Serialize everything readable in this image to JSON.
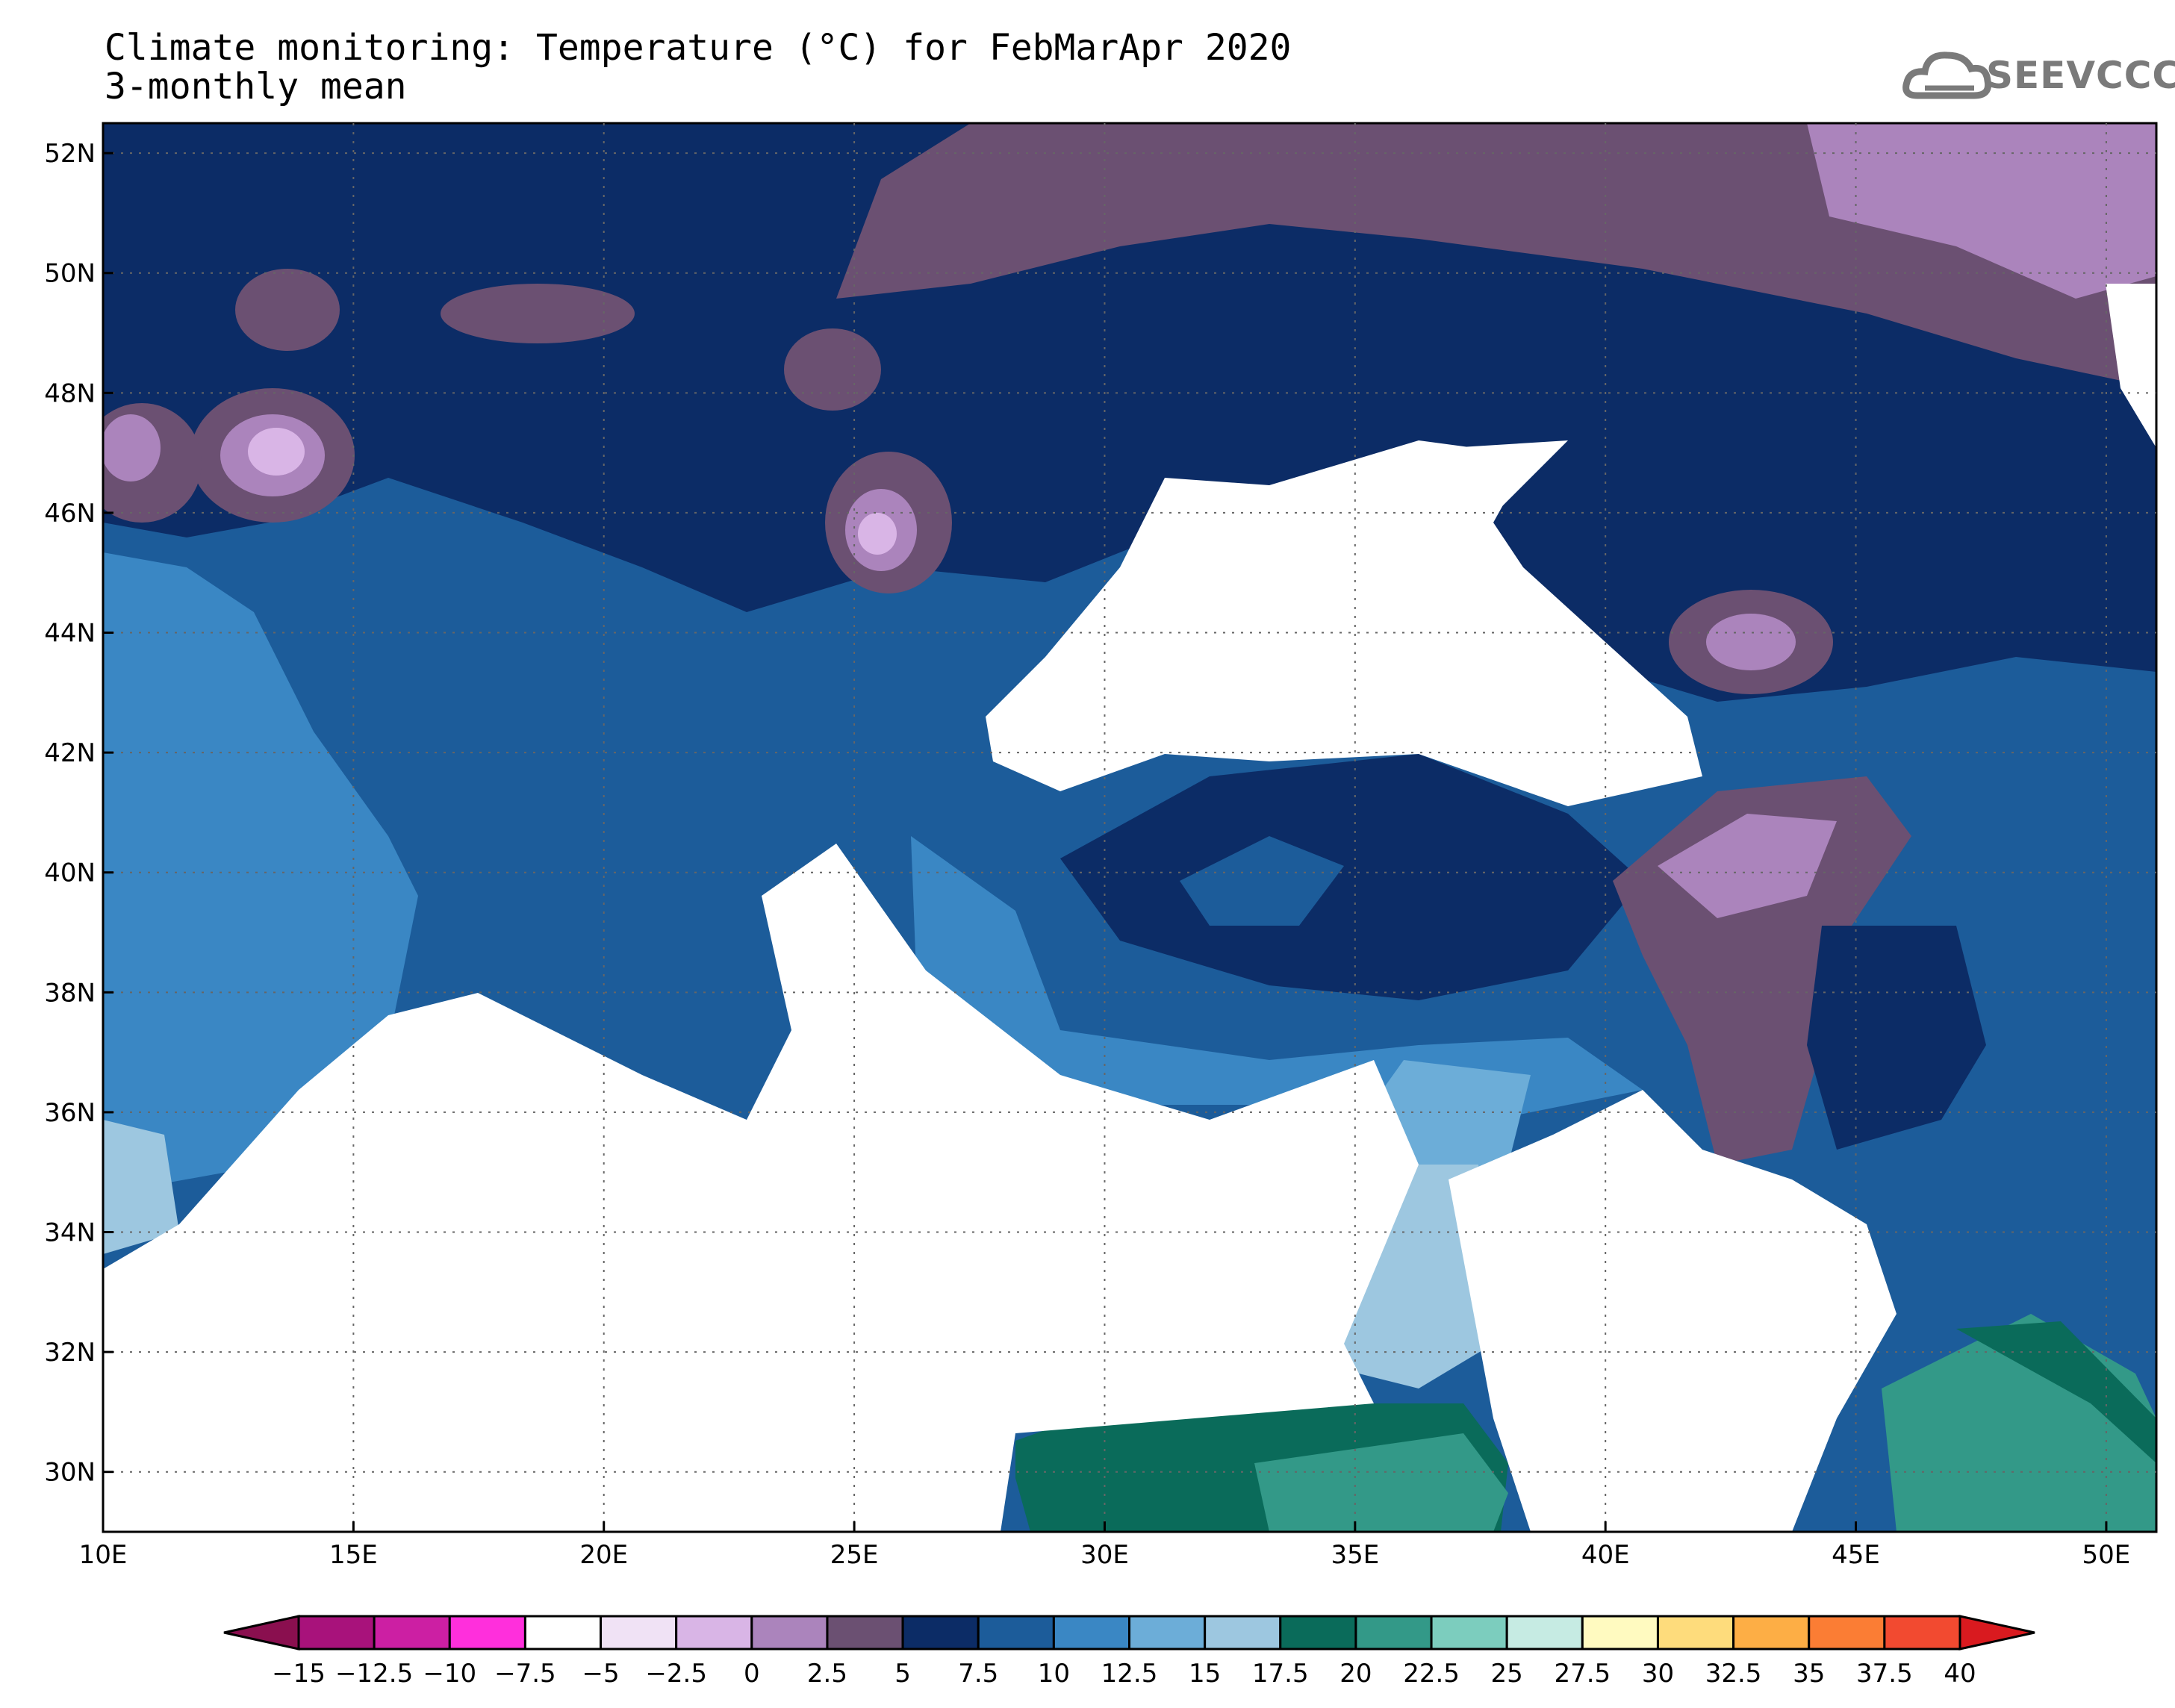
{
  "title": {
    "line1": "Climate monitoring: Temperature (°C) for FebMarApr 2020",
    "line2": "3-monthly mean"
  },
  "logo": {
    "text": "SEEVCCC",
    "icon": "cloud-icon"
  },
  "map": {
    "lon_range": [
      10,
      51
    ],
    "lat_range": [
      29,
      52.5
    ],
    "lon_ticks": [
      "10E",
      "15E",
      "20E",
      "25E",
      "30E",
      "35E",
      "40E",
      "45E",
      "50E"
    ],
    "lat_ticks": [
      "30N",
      "32N",
      "34N",
      "36N",
      "38N",
      "40N",
      "42N",
      "44N",
      "46N",
      "48N",
      "50N",
      "52N"
    ],
    "grid": true
  },
  "colorbar": {
    "labels": [
      "-15",
      "-12.5",
      "-10",
      "-7.5",
      "-5",
      "-2.5",
      "0",
      "2.5",
      "5",
      "7.5",
      "10",
      "12.5",
      "15",
      "17.5",
      "20",
      "22.5",
      "25",
      "27.5",
      "30",
      "32.5",
      "35",
      "37.5",
      "40"
    ],
    "colors": [
      "#8a0f4f",
      "#a8127b",
      "#cc1fa3",
      "#ff2fdc",
      "#ffffff",
      "#f0e2f5",
      "#d9b5e6",
      "#ab84bc",
      "#6b5072",
      "#0c2c66",
      "#1c5c9a",
      "#3a87c4",
      "#6cadd8",
      "#9dc7e0",
      "#0a6b5a",
      "#339988",
      "#7ccdbe",
      "#c6ebe3",
      "#fffac0",
      "#fedc7c",
      "#fdae45",
      "#fb7d34",
      "#f24a30",
      "#d91a1f"
    ]
  },
  "stations_note": ""
}
